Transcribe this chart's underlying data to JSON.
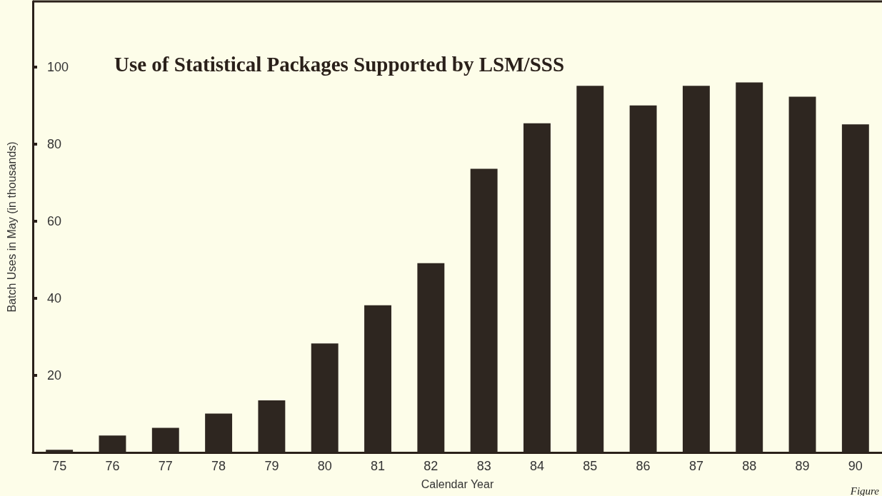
{
  "chart_data": {
    "type": "bar",
    "title": "Use of Statistical Packages Supported by LSM/SSS",
    "xlabel": "Calendar Year",
    "ylabel": "Batch Uses in May (in thousands)",
    "categories": [
      "75",
      "76",
      "77",
      "78",
      "79",
      "80",
      "81",
      "82",
      "83",
      "84",
      "85",
      "86",
      "87",
      "88",
      "89",
      "90"
    ],
    "values": [
      0.7,
      4.4,
      6.4,
      10.1,
      13.5,
      28.3,
      38.2,
      49.1,
      73.6,
      85.4,
      95.1,
      90.0,
      95.1,
      96.0,
      92.3,
      85.1
    ],
    "color": "#2e2620",
    "ylim": [
      0,
      117
    ],
    "yticks": [
      20,
      40,
      60,
      80,
      100
    ],
    "grid": false,
    "annotations": [
      "Figure"
    ]
  }
}
